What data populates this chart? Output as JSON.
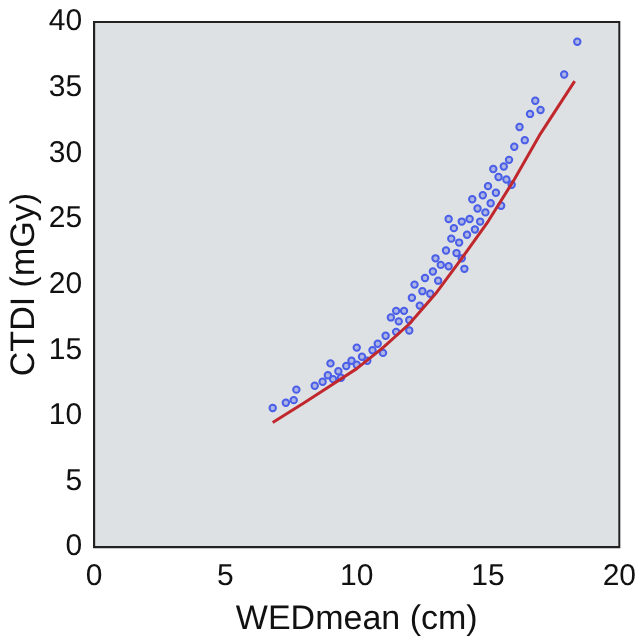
{
  "chart_data": {
    "type": "scatter",
    "xlabel": "WEDmean (cm)",
    "ylabel": "CTDI (mGy)",
    "xlim": [
      0,
      20
    ],
    "xticks": [
      0,
      5,
      10,
      15,
      20
    ],
    "ylim": [
      0,
      40
    ],
    "yticks": [
      0,
      5,
      10,
      15,
      20,
      25,
      30,
      35,
      40
    ],
    "grid": false,
    "legend": false,
    "marker": "circle",
    "series": [
      {
        "type": "scatter",
        "color": "#4a5ee8",
        "x": [
          6.8,
          7.3,
          7.6,
          7.7,
          8.4,
          8.7,
          8.9,
          9.1,
          9.3,
          9.4,
          9.6,
          9.8,
          10.0,
          10.2,
          10.4,
          10.6,
          10.8,
          11.0,
          11.1,
          11.3,
          11.5,
          11.6,
          11.8,
          12.0,
          12.1,
          12.2,
          12.4,
          12.5,
          12.6,
          12.8,
          12.9,
          13.0,
          13.1,
          13.2,
          13.4,
          13.5,
          13.6,
          13.7,
          13.8,
          13.9,
          14.0,
          14.1,
          14.2,
          14.3,
          14.4,
          14.5,
          14.6,
          14.7,
          14.8,
          14.9,
          15.0,
          15.1,
          15.2,
          15.3,
          15.4,
          15.5,
          15.6,
          15.7,
          15.8,
          15.9,
          16.0,
          16.2,
          16.4,
          16.6,
          16.8,
          17.0,
          17.9,
          18.4,
          9.0,
          10.0,
          11.5,
          12.0,
          13.5,
          14.0
        ],
        "values": [
          10.6,
          11.0,
          11.2,
          12.0,
          12.3,
          12.6,
          13.1,
          12.8,
          13.4,
          12.9,
          13.8,
          14.2,
          13.9,
          14.5,
          14.2,
          15.0,
          15.5,
          14.8,
          16.1,
          17.5,
          16.4,
          17.2,
          18.0,
          17.3,
          19.0,
          20.0,
          18.4,
          19.5,
          20.5,
          19.3,
          21.0,
          22.0,
          20.3,
          21.5,
          22.6,
          21.4,
          23.5,
          24.3,
          22.4,
          23.2,
          24.8,
          21.2,
          23.8,
          25.0,
          26.5,
          24.2,
          25.8,
          24.8,
          26.8,
          25.5,
          27.5,
          26.2,
          28.8,
          27.0,
          28.2,
          26.0,
          29.0,
          28.0,
          29.5,
          27.6,
          30.5,
          32.0,
          31.0,
          33.0,
          34.0,
          33.3,
          36.0,
          38.5,
          14.0,
          15.2,
          18.0,
          16.5,
          25.0,
          22.0
        ]
      },
      {
        "type": "line",
        "color": "#c0282e",
        "marker": "none",
        "x": [
          6.8,
          8,
          9,
          10,
          11,
          12,
          13,
          14,
          15,
          16,
          17,
          18.3
        ],
        "values": [
          9.5,
          11.0,
          12.3,
          13.6,
          15.2,
          17.0,
          19.3,
          22.0,
          24.8,
          28.0,
          31.5,
          35.5
        ]
      }
    ]
  }
}
